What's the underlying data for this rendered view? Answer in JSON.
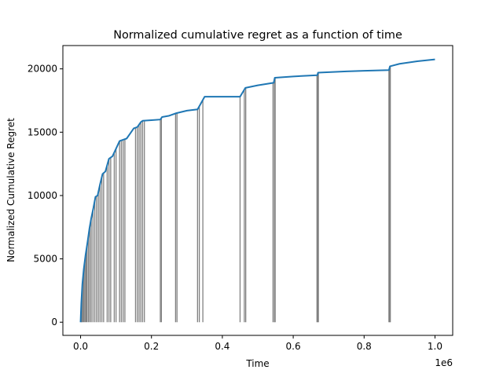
{
  "chart_data": {
    "type": "line",
    "title": "Normalized cumulative regret as a function of time",
    "xlabel": "Time",
    "ylabel": "Normalized Cumulative Regret",
    "x_offset_label": "1e6",
    "xlim": [
      -0.05,
      1.05
    ],
    "ylim": [
      -1040,
      21840
    ],
    "xticks": [
      0.0,
      0.2,
      0.4,
      0.6,
      0.8,
      1.0
    ],
    "xtick_labels": [
      "0.0",
      "0.2",
      "0.4",
      "0.6",
      "0.8",
      "1.0"
    ],
    "yticks": [
      0,
      5000,
      10000,
      15000,
      20000
    ],
    "ytick_labels": [
      "0",
      "5000",
      "10000",
      "15000",
      "20000"
    ],
    "grid": false,
    "colors": {
      "line": "#1f77b4",
      "restart": "#808080",
      "axes": "#000000"
    },
    "series": [
      {
        "x": [
          0.0,
          0.002,
          0.005,
          0.009,
          0.014,
          0.02,
          0.025,
          0.03,
          0.036,
          0.042,
          0.048,
          0.055,
          0.062,
          0.07,
          0.08,
          0.09,
          0.1,
          0.11,
          0.12,
          0.13,
          0.14,
          0.15,
          0.16,
          0.17,
          0.175,
          0.2,
          0.225,
          0.23,
          0.25,
          0.27,
          0.3,
          0.33,
          0.35,
          0.4,
          0.45,
          0.465,
          0.5,
          0.545,
          0.548,
          0.6,
          0.668,
          0.67,
          0.75,
          0.8,
          0.87,
          0.873,
          0.9,
          0.95,
          1.0
        ],
        "y": [
          0,
          1500,
          3000,
          4200,
          5300,
          6400,
          7400,
          8200,
          9000,
          9900,
          10000,
          10900,
          11700,
          11900,
          12900,
          13100,
          13700,
          14300,
          14400,
          14500,
          14900,
          15300,
          15400,
          15800,
          15900,
          15950,
          16000,
          16200,
          16300,
          16500,
          16700,
          16800,
          17800,
          17800,
          17800,
          18500,
          18700,
          18900,
          19300,
          19400,
          19500,
          19700,
          19800,
          19850,
          19900,
          20200,
          20400,
          20600,
          20750
        ]
      }
    ],
    "restarts": [
      0.002,
      0.004,
      0.006,
      0.009,
      0.012,
      0.015,
      0.018,
      0.022,
      0.026,
      0.03,
      0.035,
      0.04,
      0.045,
      0.05,
      0.055,
      0.06,
      0.065,
      0.075,
      0.08,
      0.085,
      0.095,
      0.1,
      0.11,
      0.115,
      0.12,
      0.125,
      0.155,
      0.16,
      0.165,
      0.17,
      0.175,
      0.18,
      0.225,
      0.228,
      0.268,
      0.272,
      0.33,
      0.335,
      0.345,
      0.45,
      0.462,
      0.466,
      0.543,
      0.547,
      0.549,
      0.667,
      0.669,
      0.671,
      0.87,
      0.872,
      0.874
    ]
  }
}
